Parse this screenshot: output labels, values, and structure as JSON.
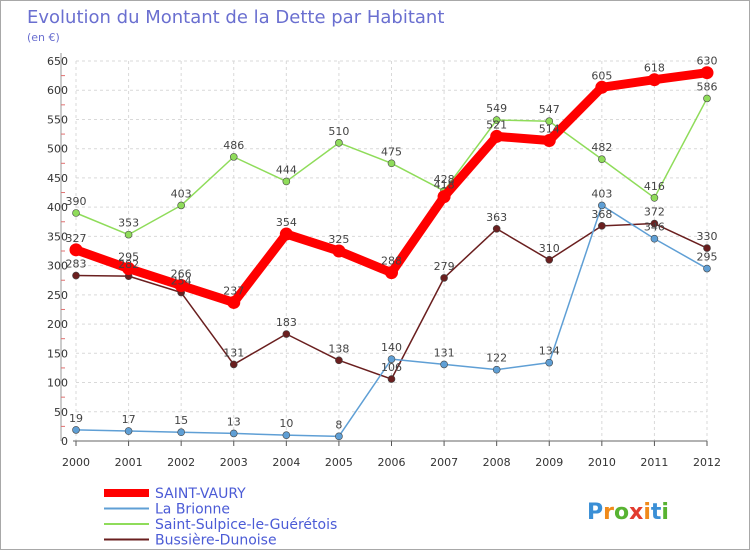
{
  "chart_data": {
    "type": "line",
    "title": "Evolution du Montant de la Dette par Habitant",
    "subtitle": "(en €)",
    "x": [
      "2000",
      "2001",
      "2002",
      "2003",
      "2004",
      "2005",
      "2006",
      "2007",
      "2008",
      "2009",
      "2010",
      "2011",
      "2012"
    ],
    "ylim": [
      0,
      650
    ],
    "yticks": [
      0,
      50,
      100,
      150,
      200,
      250,
      300,
      350,
      400,
      450,
      500,
      550,
      600,
      650
    ],
    "grid": true,
    "legend_position": "bottom-left",
    "series": [
      {
        "name": "SAINT-VAURY",
        "color": "#ff0000",
        "values": [
          327,
          295,
          266,
          237,
          354,
          325,
          288,
          418,
          521,
          514,
          605,
          618,
          630
        ]
      },
      {
        "name": "La Brionne",
        "color": "#5f9fd5",
        "values": [
          19,
          17,
          15,
          13,
          10,
          8,
          140,
          131,
          122,
          134,
          403,
          346,
          295
        ]
      },
      {
        "name": "Saint-Sulpice-le-Guérétois",
        "color": "#8fdc5a",
        "values": [
          390,
          353,
          403,
          486,
          444,
          510,
          475,
          428,
          549,
          547,
          482,
          416,
          586
        ]
      },
      {
        "name": "Bussière-Dunoise",
        "color": "#6a1f1f",
        "values": [
          283,
          282,
          254,
          131,
          183,
          138,
          106,
          279,
          363,
          310,
          368,
          372,
          330
        ]
      }
    ]
  },
  "logo": {
    "text": "Proxiti"
  }
}
